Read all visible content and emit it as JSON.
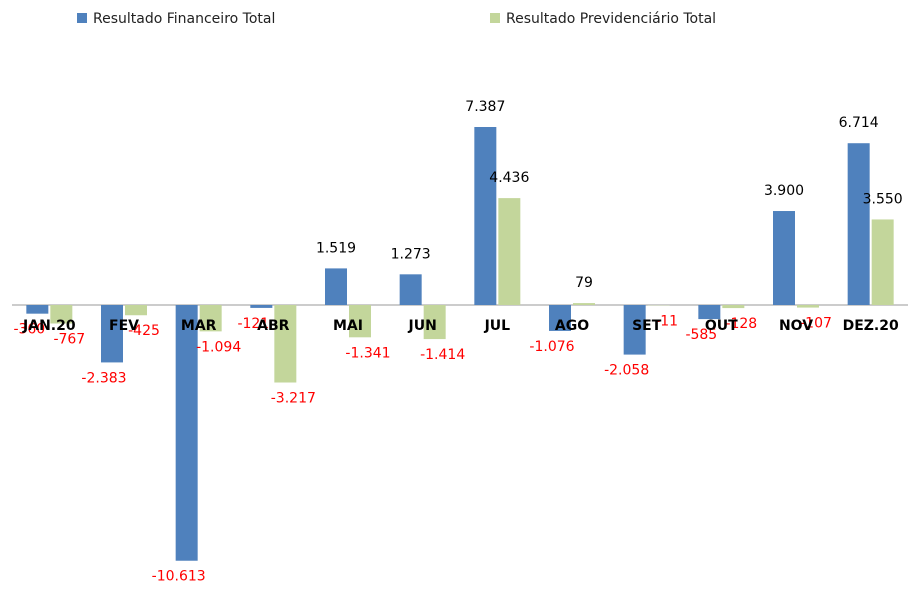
{
  "chart_data": {
    "type": "bar",
    "categories": [
      "JAN.20",
      "FEV",
      "MAR",
      "ABR",
      "MAI",
      "JUN",
      "JUL",
      "AGO",
      "SET",
      "OUT",
      "NOV",
      "DEZ.20"
    ],
    "series": [
      {
        "name": "Resultado Financeiro Total",
        "color": "#4f81bd",
        "values": [
          -360,
          -2383,
          -10613,
          -121,
          1519,
          1273,
          7387,
          -1076,
          -2058,
          -585,
          3900,
          6714
        ],
        "value_labels": [
          "-360",
          "-2.383",
          "-10.613",
          "-121",
          "1.519",
          "1.273",
          "7.387",
          "-1.076",
          "-2.058",
          "-585",
          "3.900",
          "6.714"
        ]
      },
      {
        "name": "Resultado Previdenciário Total",
        "color": "#c3d69b",
        "values": [
          -767,
          -425,
          -1094,
          -3217,
          -1341,
          -1414,
          4436,
          79,
          -11,
          -128,
          -107,
          3550
        ],
        "value_labels": [
          "-767",
          "-425",
          "-1.094",
          "-3.217",
          "-1.341",
          "-1.414",
          "4.436",
          "79",
          "-11",
          "-128",
          "-107",
          "3.550"
        ]
      }
    ],
    "legend": "top"
  }
}
